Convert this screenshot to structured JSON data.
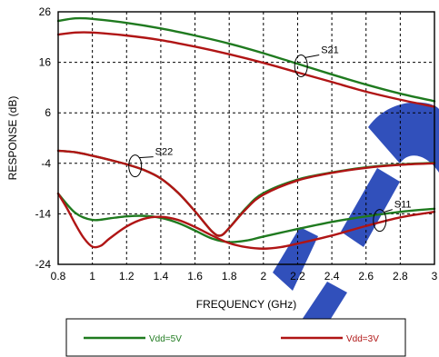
{
  "chart_data": {
    "type": "line",
    "xlabel": "FREQUENCY (GHz)",
    "ylabel": "RESPONSE (dB)",
    "xlim": [
      0.8,
      3.0
    ],
    "ylim": [
      -24,
      26
    ],
    "xticks": [
      0.8,
      1.0,
      1.2,
      1.4,
      1.6,
      1.8,
      2.0,
      2.2,
      2.4,
      2.6,
      2.8,
      3.0
    ],
    "xtick_labels": [
      "0.8",
      "1",
      "1.2",
      "1.4",
      "1.6",
      "1.8",
      "2",
      "2.2",
      "2.4",
      "2.6",
      "2.8",
      "3"
    ],
    "yticks": [
      26,
      16,
      6,
      -4,
      -14,
      -24
    ],
    "ytick_labels": [
      "26",
      "16",
      "6",
      "-4",
      "-14",
      "-24"
    ],
    "grid": true,
    "legend_position": "bottom",
    "colors": {
      "vdd5": "#1f7a1f",
      "vdd3": "#b01515",
      "watermark": "#2747b8"
    },
    "series": [
      {
        "name": "Vdd=5V",
        "color": "#1f7a1f",
        "param": "S21",
        "x": [
          0.8,
          0.9,
          1.0,
          1.2,
          1.4,
          1.6,
          1.8,
          2.0,
          2.2,
          2.4,
          2.6,
          2.8,
          3.0
        ],
        "y": [
          24.2,
          24.7,
          24.6,
          23.8,
          22.7,
          21.3,
          19.7,
          17.8,
          15.7,
          13.6,
          11.6,
          9.8,
          8.3
        ]
      },
      {
        "name": "Vdd=3V",
        "color": "#b01515",
        "param": "S21",
        "x": [
          0.8,
          0.9,
          1.0,
          1.2,
          1.4,
          1.6,
          1.8,
          2.0,
          2.2,
          2.4,
          2.6,
          2.8,
          3.0
        ],
        "y": [
          21.5,
          21.9,
          21.9,
          21.3,
          20.4,
          19.1,
          17.6,
          15.9,
          14.0,
          12.1,
          10.2,
          8.6,
          7.2
        ]
      },
      {
        "name": "Vdd=3V",
        "color": "#b01515",
        "param": "S22",
        "x": [
          0.8,
          0.9,
          1.0,
          1.1,
          1.2,
          1.3,
          1.4,
          1.5,
          1.6,
          1.7,
          1.75,
          1.8,
          1.9,
          2.0,
          2.2,
          2.4,
          2.6,
          2.8,
          3.0
        ],
        "y": [
          -1.5,
          -1.8,
          -2.5,
          -3.3,
          -4.2,
          -5.3,
          -7.0,
          -9.8,
          -13.5,
          -17.5,
          -18.3,
          -16.8,
          -13.0,
          -10.2,
          -7.4,
          -5.9,
          -4.9,
          -4.3,
          -4.0
        ]
      },
      {
        "name": "Vdd=5V",
        "color": "#1f7a1f",
        "param": "S22",
        "x": [
          0.8,
          0.9,
          1.0,
          1.1,
          1.2,
          1.3,
          1.4,
          1.5,
          1.6,
          1.7,
          1.75,
          1.8,
          1.9,
          2.0,
          2.2,
          2.4,
          2.6,
          2.8,
          3.0
        ],
        "y": [
          -1.5,
          -1.8,
          -2.5,
          -3.3,
          -4.2,
          -5.3,
          -7.0,
          -9.8,
          -13.5,
          -17.5,
          -18.3,
          -16.8,
          -12.8,
          -9.9,
          -7.2,
          -5.8,
          -4.8,
          -4.2,
          -3.9
        ]
      },
      {
        "name": "Vdd=5V",
        "color": "#1f7a1f",
        "param": "S11",
        "x": [
          0.8,
          0.9,
          1.0,
          1.1,
          1.2,
          1.3,
          1.4,
          1.5,
          1.6,
          1.7,
          1.8,
          1.9,
          2.0,
          2.2,
          2.4,
          2.6,
          2.8,
          3.0
        ],
        "y": [
          -10.0,
          -13.8,
          -15.2,
          -14.9,
          -14.5,
          -14.4,
          -14.8,
          -15.8,
          -17.3,
          -18.9,
          -19.6,
          -19.3,
          -18.5,
          -17.0,
          -15.6,
          -14.5,
          -13.6,
          -13.0
        ]
      },
      {
        "name": "Vdd=3V",
        "color": "#b01515",
        "param": "S11",
        "x": [
          0.8,
          0.85,
          0.9,
          0.95,
          1.0,
          1.05,
          1.1,
          1.2,
          1.3,
          1.4,
          1.5,
          1.6,
          1.7,
          1.8,
          1.9,
          2.0,
          2.1,
          2.2,
          2.4,
          2.6,
          2.8,
          3.0
        ],
        "y": [
          -10.0,
          -12.8,
          -16.0,
          -18.8,
          -20.5,
          -20.3,
          -18.9,
          -16.5,
          -15.0,
          -14.6,
          -15.2,
          -16.6,
          -18.3,
          -19.8,
          -20.6,
          -20.9,
          -20.6,
          -19.9,
          -18.3,
          -16.4,
          -14.7,
          -13.6
        ]
      }
    ],
    "annotations": [
      {
        "text": "S21",
        "x": 2.22,
        "y": 15.3
      },
      {
        "text": "S22",
        "x": 1.25,
        "y": -4.5
      },
      {
        "text": "S11",
        "x": 2.68,
        "y": -15.3
      }
    ],
    "legend": [
      {
        "label": "Vdd=5V",
        "color": "#1f7a1f"
      },
      {
        "label": "Vdd=3V",
        "color": "#b01515"
      }
    ]
  }
}
